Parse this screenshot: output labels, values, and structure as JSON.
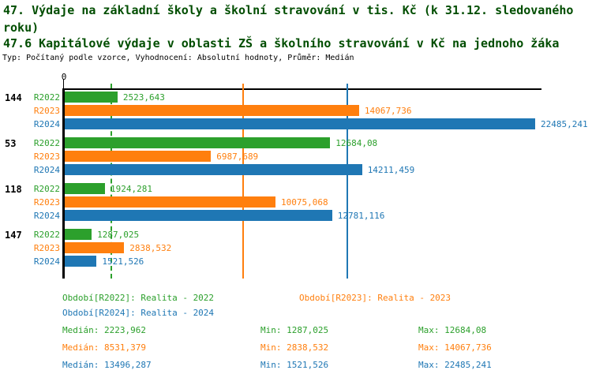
{
  "title": {
    "line1": "47. Výdaje na základní školy a školní stravování v tis. Kč (k 31.12. sledovaného roku)",
    "line2": "47.6 Kapitálové výdaje v oblasti ZŠ a školního stravování v Kč na jednoho žáka",
    "meta": "Typ: Počítaný podle vzorce, Vyhodnocení: Absolutní hodnoty, Průměr: Medián"
  },
  "colors": {
    "title": "#004d00",
    "axis": "#000000",
    "r2022": "#2ca02c",
    "r2023": "#ff7f0e",
    "r2024": "#1f77b4"
  },
  "chart_data": {
    "type": "bar",
    "orientation": "horizontal",
    "title": "47.6 Kapitálové výdaje v oblasti ZŠ a školního stravování v Kč na jednoho žáka",
    "categories": [
      "144",
      "53",
      "118",
      "147"
    ],
    "x_axis": {
      "min": 0,
      "zero_label": "0",
      "max_estimate": 22822,
      "grid": "median-lines"
    },
    "legend_position": "bottom",
    "series": [
      {
        "name": "R2022",
        "color": "#2ca02c",
        "gridline_style": "dashed",
        "values": [
          2523.643,
          12684.08,
          1924.281,
          1287.025
        ],
        "value_labels": [
          "2523,643",
          "12684,08",
          "1924,281",
          "1287,025"
        ],
        "median": 2223.962,
        "period_label": "Období[R2022]: Realita - 2022",
        "median_label": "Medián: 2223,962",
        "min_label": "Min: 1287,025",
        "max_label": "Max: 12684,08"
      },
      {
        "name": "R2023",
        "color": "#ff7f0e",
        "gridline_style": "solid",
        "values": [
          14067.736,
          6987.689,
          10075.068,
          2838.532
        ],
        "value_labels": [
          "14067,736",
          "6987,689",
          "10075,068",
          "2838,532"
        ],
        "median": 8531.379,
        "period_label": "Období[R2023]: Realita - 2023",
        "median_label": "Medián: 8531,379",
        "min_label": "Min: 2838,532",
        "max_label": "Max: 14067,736"
      },
      {
        "name": "R2024",
        "color": "#1f77b4",
        "gridline_style": "solid",
        "values": [
          22485.241,
          14211.459,
          12781.116,
          1521.526
        ],
        "value_labels": [
          "22485,241",
          "14211,459",
          "12781,116",
          "1521,526"
        ],
        "median": 13496.287,
        "period_label": "Období[R2024]: Realita - 2024",
        "median_label": "Medián: 13496,287",
        "min_label": "Min: 1521,526",
        "max_label": "Max: 22485,241"
      }
    ]
  }
}
